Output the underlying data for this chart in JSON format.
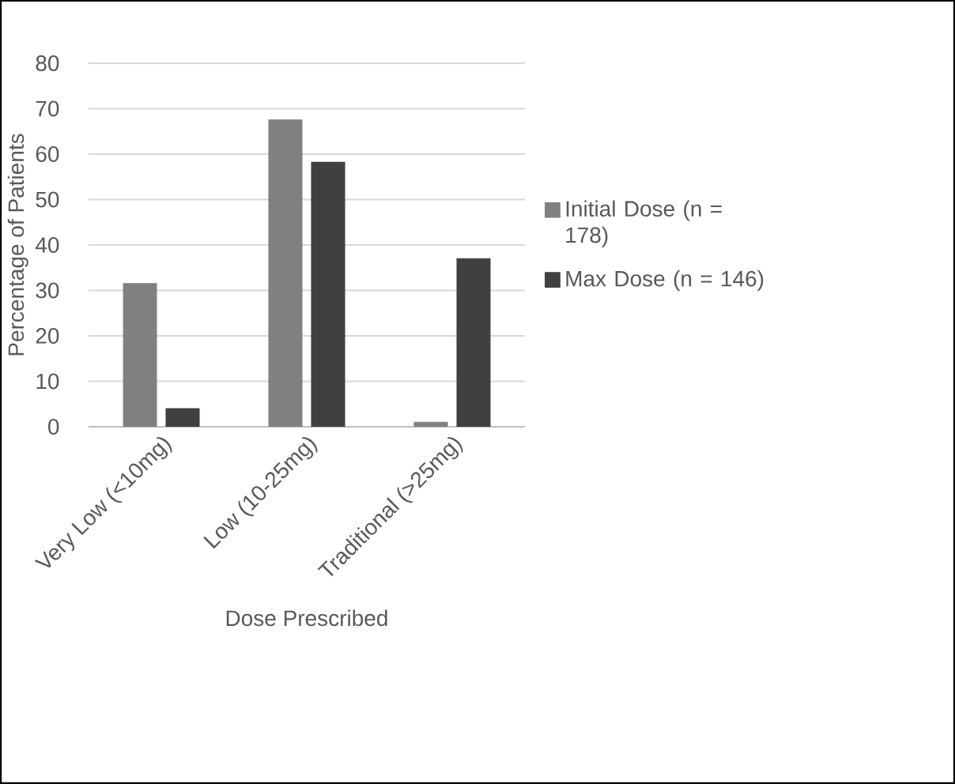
{
  "chart_data": {
    "type": "bar",
    "xlabel": "Dose Prescribed",
    "ylabel": "Percentage of Patients",
    "categories": [
      "Very Low (<10mg)",
      "Low (10-25mg)",
      "Traditional (>25mg)"
    ],
    "series": [
      {
        "name": "Initial Dose (n = 178)",
        "color": "#808080",
        "values": [
          31.5,
          67.5,
          1.0
        ]
      },
      {
        "name": "Max Dose (n = 146)",
        "color": "#404040",
        "values": [
          4.0,
          58.2,
          37.0
        ]
      }
    ],
    "ylim": [
      0,
      80
    ],
    "yticks": [
      0,
      10,
      20,
      30,
      40,
      50,
      60,
      70,
      80
    ],
    "grid": "y",
    "legend": "right"
  }
}
